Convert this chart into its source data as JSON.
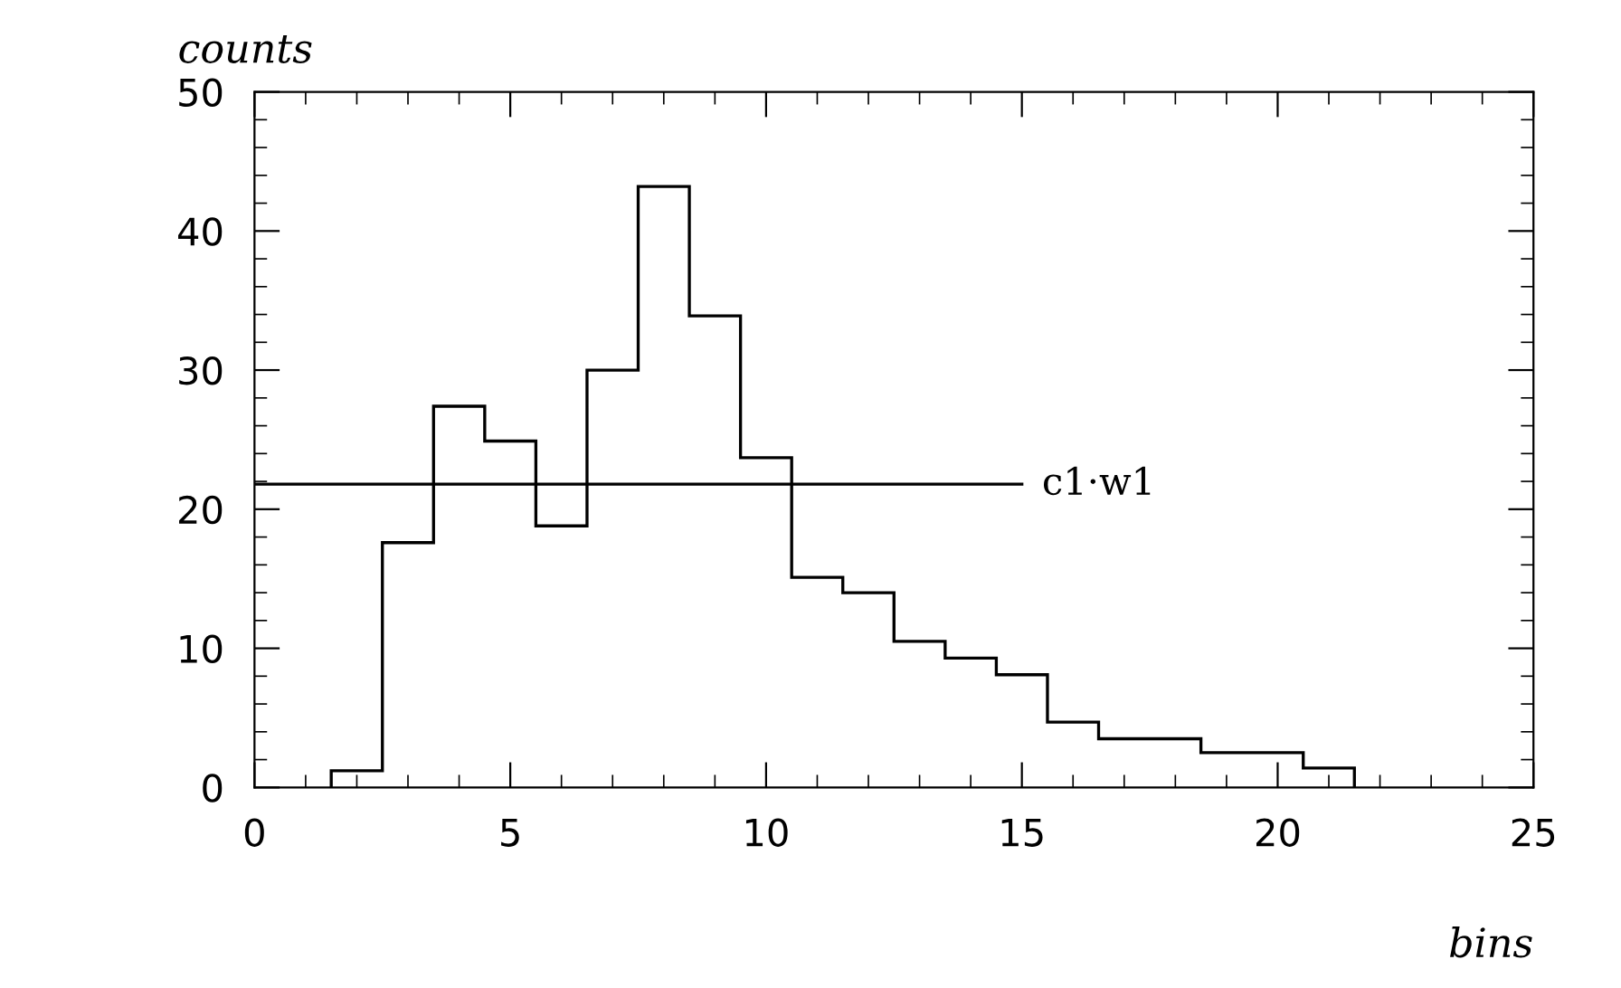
{
  "chart_data": {
    "type": "histogram",
    "xlabel": "bins",
    "ylabel": "counts",
    "bins": [
      1.5,
      2.5,
      3.5,
      4.5,
      5.5,
      6.5,
      7.5,
      8.5,
      9.5,
      10.5,
      11.5,
      12.5,
      13.5,
      14.5,
      15.5,
      16.5,
      17.5,
      18.5,
      19.5,
      20.5,
      21.5
    ],
    "values": [
      1.2,
      17.6,
      27.4,
      24.9,
      18.8,
      30.0,
      43.2,
      33.9,
      23.7,
      15.1,
      14.0,
      10.5,
      9.3,
      8.1,
      4.7,
      3.5,
      3.5,
      2.5,
      2.5,
      1.4
    ],
    "color": "#000000",
    "series": [
      {
        "type": "line",
        "name": "c1·w1",
        "color": "#000000",
        "x": [
          0,
          15
        ],
        "values": [
          21.8,
          21.8
        ]
      }
    ],
    "xlim": [
      0,
      25
    ],
    "xticks": [
      0,
      5,
      10,
      15,
      20,
      25
    ],
    "ylim": [
      0,
      50
    ],
    "yticks": [
      0,
      10,
      20,
      30,
      40,
      50
    ],
    "grid": false,
    "legend": false
  }
}
